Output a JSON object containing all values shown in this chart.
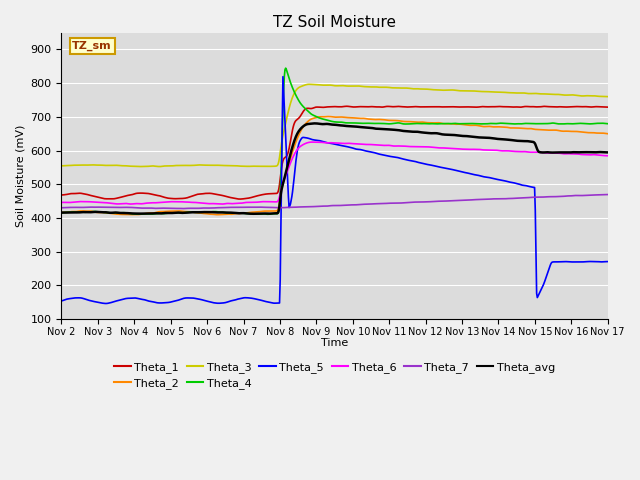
{
  "title": "TZ Soil Moisture",
  "ylabel": "Soil Moisture (mV)",
  "xlabel": "Time",
  "ylim": [
    100,
    950
  ],
  "yticks": [
    100,
    200,
    300,
    400,
    500,
    600,
    700,
    800,
    900
  ],
  "xlim": [
    0,
    15
  ],
  "xtick_labels": [
    "Nov 2",
    "Nov 3",
    "Nov 4",
    "Nov 5",
    "Nov 6",
    "Nov 7",
    "Nov 8",
    "Nov 9",
    "Nov 10",
    "Nov 11",
    "Nov 12",
    "Nov 13",
    "Nov 14",
    "Nov 15",
    "Nov 16",
    "Nov 17"
  ],
  "bg_color": "#dcdcdc",
  "fig_color": "#f0f0f0",
  "label_box_text": "TZ_sm",
  "label_box_bg": "#ffffcc",
  "label_box_border": "#cc9900",
  "series_colors": {
    "Theta_1": "#cc0000",
    "Theta_2": "#ff8800",
    "Theta_3": "#cccc00",
    "Theta_4": "#00cc00",
    "Theta_5": "#0000ff",
    "Theta_6": "#ff00ff",
    "Theta_7": "#9933cc",
    "Theta_avg": "#000000"
  },
  "legend_order": [
    "Theta_1",
    "Theta_2",
    "Theta_3",
    "Theta_4",
    "Theta_5",
    "Theta_6",
    "Theta_7",
    "Theta_avg"
  ]
}
